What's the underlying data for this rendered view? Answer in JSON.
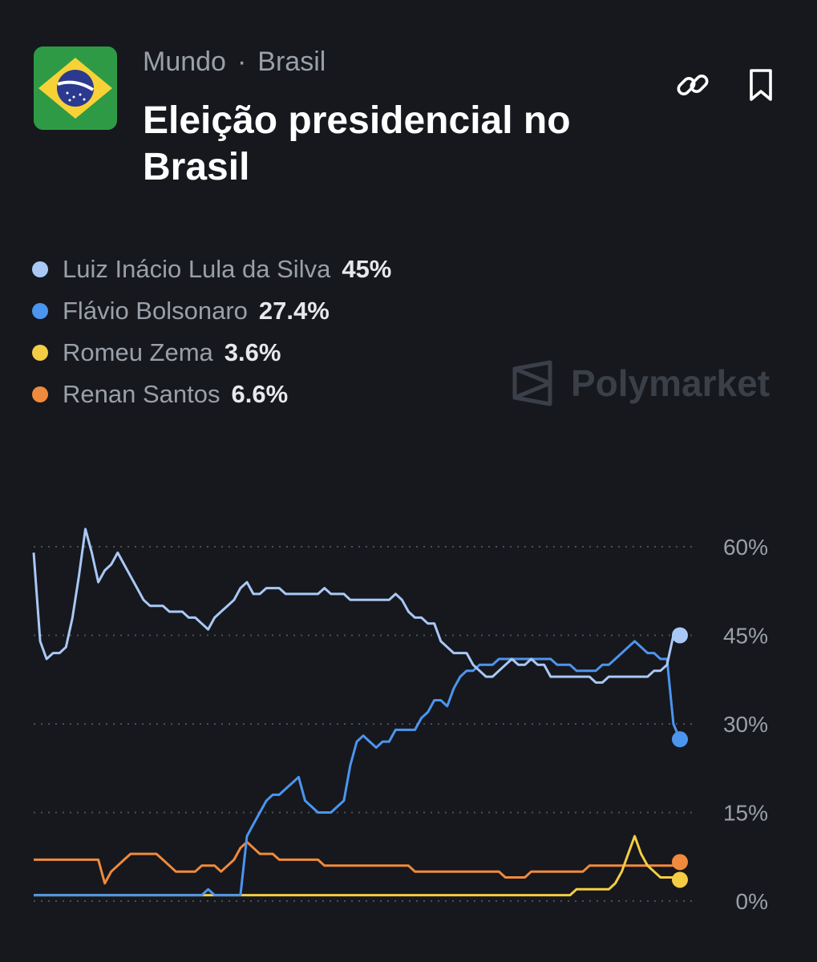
{
  "header": {
    "breadcrumbs": [
      "Mundo",
      "Brasil"
    ],
    "separator": "·",
    "title": "Eleição presidencial no Brasil"
  },
  "icons": {
    "flag": "brazil-flag-icon",
    "link": "link-icon",
    "bookmark": "bookmark-icon"
  },
  "watermark": "Polymarket",
  "colors": {
    "background": "#16181d",
    "lula": "#a9c8f5",
    "bolsonaro": "#4c95ef",
    "zema": "#f4cd44",
    "santos": "#f08a3c"
  },
  "legend": [
    {
      "name": "Luiz Inácio Lula da Silva",
      "value": "45%",
      "color": "#a9c8f5"
    },
    {
      "name": "Flávio Bolsonaro",
      "value": "27.4%",
      "color": "#4c95ef"
    },
    {
      "name": "Romeu Zema",
      "value": "3.6%",
      "color": "#f4cd44"
    },
    {
      "name": "Renan Santos",
      "value": "6.6%",
      "color": "#f08a3c"
    }
  ],
  "chart_data": {
    "type": "line",
    "ylim": [
      0,
      60
    ],
    "yticks": [
      0,
      15,
      30,
      45,
      60
    ],
    "ytick_labels": [
      "0%",
      "15%",
      "30%",
      "45%",
      "60%"
    ],
    "grid": true,
    "x": [
      0,
      1,
      2,
      3,
      4,
      5,
      6,
      7,
      8,
      9,
      10,
      11,
      12,
      13,
      14,
      15,
      16,
      17,
      18,
      19,
      20,
      21,
      22,
      23,
      24,
      25,
      26,
      27,
      28,
      29,
      30,
      31,
      32,
      33,
      34,
      35,
      36,
      37,
      38,
      39,
      40,
      41,
      42,
      43,
      44,
      45,
      46,
      47,
      48,
      49,
      50,
      51,
      52,
      53,
      54,
      55,
      56,
      57,
      58,
      59,
      60,
      61,
      62,
      63,
      64,
      65,
      66,
      67,
      68,
      69,
      70,
      71,
      72,
      73,
      74,
      75,
      76,
      77,
      78,
      79,
      80,
      81,
      82,
      83,
      84,
      85,
      86,
      87,
      88,
      89,
      90,
      91,
      92,
      93,
      94,
      95,
      96,
      97,
      98,
      99,
      100
    ],
    "series": [
      {
        "name": "Luiz Inácio Lula da Silva",
        "color": "#a9c8f5",
        "values": [
          59,
          44,
          41,
          42,
          42,
          43,
          48,
          55,
          63,
          59,
          54,
          56,
          57,
          59,
          57,
          55,
          53,
          51,
          50,
          50,
          50,
          49,
          49,
          49,
          48,
          48,
          47,
          46,
          48,
          49,
          50,
          51,
          53,
          54,
          52,
          52,
          53,
          53,
          53,
          52,
          52,
          52,
          52,
          52,
          52,
          53,
          52,
          52,
          52,
          51,
          51,
          51,
          51,
          51,
          51,
          51,
          52,
          51,
          49,
          48,
          48,
          47,
          47,
          44,
          43,
          42,
          42,
          42,
          40,
          39,
          38,
          38,
          39,
          40,
          41,
          40,
          40,
          41,
          40,
          40,
          38,
          38,
          38,
          38,
          38,
          38,
          38,
          37,
          37,
          38,
          38,
          38,
          38,
          38,
          38,
          38,
          39,
          39,
          40,
          45,
          45
        ]
      },
      {
        "name": "Flávio Bolsonaro",
        "color": "#4c95ef",
        "values": [
          1,
          1,
          1,
          1,
          1,
          1,
          1,
          1,
          1,
          1,
          1,
          1,
          1,
          1,
          1,
          1,
          1,
          1,
          1,
          1,
          1,
          1,
          1,
          1,
          1,
          1,
          1,
          2,
          1,
          1,
          1,
          1,
          1,
          11,
          13,
          15,
          17,
          18,
          18,
          19,
          20,
          21,
          17,
          16,
          15,
          15,
          15,
          16,
          17,
          23,
          27,
          28,
          27,
          26,
          27,
          27,
          29,
          29,
          29,
          29,
          31,
          32,
          34,
          34,
          33,
          36,
          38,
          39,
          39,
          40,
          40,
          40,
          41,
          41,
          41,
          41,
          41,
          41,
          41,
          41,
          41,
          40,
          40,
          40,
          39,
          39,
          39,
          39,
          40,
          40,
          41,
          42,
          43,
          44,
          43,
          42,
          42,
          41,
          41,
          30,
          27.4
        ]
      },
      {
        "name": "Romeu Zema",
        "color": "#f4cd44",
        "values": [
          1,
          1,
          1,
          1,
          1,
          1,
          1,
          1,
          1,
          1,
          1,
          1,
          1,
          1,
          1,
          1,
          1,
          1,
          1,
          1,
          1,
          1,
          1,
          1,
          1,
          1,
          1,
          1,
          1,
          1,
          1,
          1,
          1,
          1,
          1,
          1,
          1,
          1,
          1,
          1,
          1,
          1,
          1,
          1,
          1,
          1,
          1,
          1,
          1,
          1,
          1,
          1,
          1,
          1,
          1,
          1,
          1,
          1,
          1,
          1,
          1,
          1,
          1,
          1,
          1,
          1,
          1,
          1,
          1,
          1,
          1,
          1,
          1,
          1,
          1,
          1,
          1,
          1,
          1,
          1,
          1,
          1,
          1,
          1,
          2,
          2,
          2,
          2,
          2,
          2,
          3,
          5,
          8,
          11,
          8,
          6,
          5,
          4,
          4,
          4,
          3.6
        ]
      },
      {
        "name": "Renan Santos",
        "color": "#f08a3c",
        "values": [
          7,
          7,
          7,
          7,
          7,
          7,
          7,
          7,
          7,
          7,
          7,
          3,
          5,
          6,
          7,
          8,
          8,
          8,
          8,
          8,
          7,
          6,
          5,
          5,
          5,
          5,
          6,
          6,
          6,
          5,
          6,
          7,
          9,
          10,
          9,
          8,
          8,
          8,
          7,
          7,
          7,
          7,
          7,
          7,
          7,
          6,
          6,
          6,
          6,
          6,
          6,
          6,
          6,
          6,
          6,
          6,
          6,
          6,
          6,
          5,
          5,
          5,
          5,
          5,
          5,
          5,
          5,
          5,
          5,
          5,
          5,
          5,
          5,
          4,
          4,
          4,
          4,
          5,
          5,
          5,
          5,
          5,
          5,
          5,
          5,
          5,
          6,
          6,
          6,
          6,
          6,
          6,
          6,
          6,
          6,
          6,
          6,
          6,
          6,
          6,
          6.6
        ]
      }
    ]
  }
}
